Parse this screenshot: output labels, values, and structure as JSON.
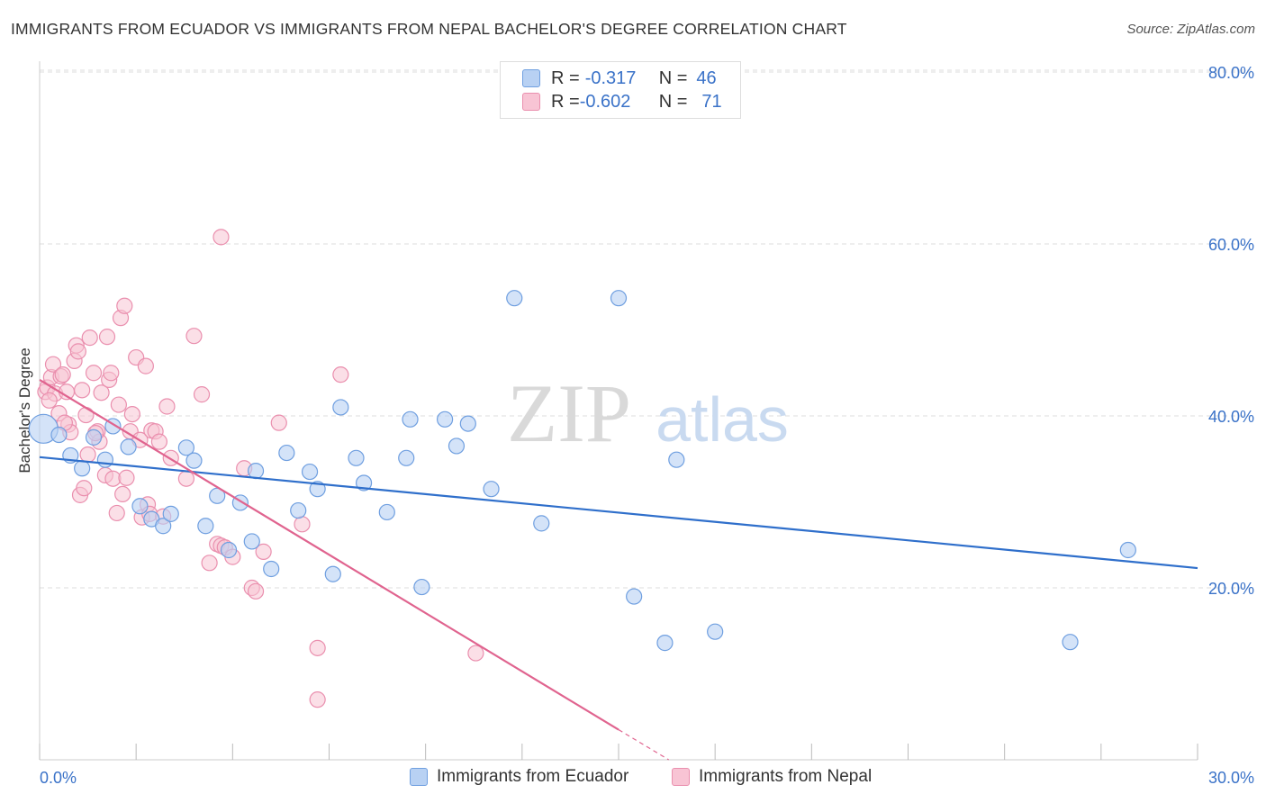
{
  "header": {
    "title": "IMMIGRANTS FROM ECUADOR VS IMMIGRANTS FROM NEPAL BACHELOR'S DEGREE CORRELATION CHART",
    "source": "Source: ZipAtlas.com"
  },
  "legend_top": {
    "rows": [
      {
        "r_label": "R = ",
        "r_value": "-0.317",
        "n_label": "N = ",
        "n_value": "46"
      },
      {
        "r_label": "R = ",
        "r_value": "-0.602",
        "n_label": "N = ",
        "n_value": "71"
      }
    ]
  },
  "watermark": {
    "zip": "ZIP",
    "atlas": "atlas"
  },
  "colors": {
    "ecuador_fill": "#b8d1f3",
    "ecuador_stroke": "#6f9fe0",
    "ecuador_line": "#2f6fcb",
    "nepal_fill": "#f8c4d4",
    "nepal_stroke": "#ea8fae",
    "nepal_line": "#e0648f",
    "grid": "#dcdcdc",
    "axis_text": "#3a72c8"
  },
  "chart_data": {
    "type": "scatter",
    "title": "IMMIGRANTS FROM ECUADOR VS IMMIGRANTS FROM NEPAL BACHELOR'S DEGREE CORRELATION CHART",
    "xlabel": "",
    "ylabel": "Bachelor's Degree",
    "xlim": [
      0,
      30
    ],
    "ylim": [
      0,
      80
    ],
    "x_tick_labels": [
      "0.0%",
      "30.0%"
    ],
    "y_ticks": [
      20,
      40,
      60,
      80
    ],
    "y_tick_labels": [
      "20.0%",
      "40.0%",
      "60.0%",
      "80.0%"
    ],
    "grid": true,
    "legend_position": "bottom",
    "series": [
      {
        "name": "Immigrants from Ecuador",
        "r": -0.317,
        "n": 46,
        "trend": {
          "x": [
            0,
            30
          ],
          "y": [
            35.2,
            22.3
          ]
        },
        "points": [
          [
            0.1,
            38.5
          ],
          [
            0.5,
            37.8
          ],
          [
            0.8,
            35.4
          ],
          [
            1.1,
            33.9
          ],
          [
            1.4,
            37.5
          ],
          [
            1.7,
            34.9
          ],
          [
            1.9,
            38.8
          ],
          [
            2.3,
            36.4
          ],
          [
            2.6,
            29.5
          ],
          [
            2.9,
            28.0
          ],
          [
            3.2,
            27.2
          ],
          [
            3.4,
            28.6
          ],
          [
            3.8,
            36.3
          ],
          [
            4.0,
            34.8
          ],
          [
            4.3,
            27.2
          ],
          [
            4.6,
            30.7
          ],
          [
            4.9,
            24.4
          ],
          [
            5.2,
            29.9
          ],
          [
            5.5,
            25.4
          ],
          [
            5.6,
            33.6
          ],
          [
            6.0,
            22.2
          ],
          [
            6.4,
            35.7
          ],
          [
            6.7,
            29.0
          ],
          [
            7.0,
            33.5
          ],
          [
            7.2,
            31.5
          ],
          [
            7.6,
            21.6
          ],
          [
            7.8,
            41.0
          ],
          [
            8.2,
            35.1
          ],
          [
            8.4,
            32.2
          ],
          [
            9.0,
            28.8
          ],
          [
            9.5,
            35.1
          ],
          [
            9.6,
            39.6
          ],
          [
            9.9,
            20.1
          ],
          [
            10.5,
            39.6
          ],
          [
            10.8,
            36.5
          ],
          [
            11.1,
            39.1
          ],
          [
            11.7,
            31.5
          ],
          [
            12.3,
            53.7
          ],
          [
            13.0,
            27.5
          ],
          [
            15.0,
            53.7
          ],
          [
            15.4,
            19.0
          ],
          [
            16.2,
            13.6
          ],
          [
            16.5,
            34.9
          ],
          [
            17.5,
            14.9
          ],
          [
            26.7,
            13.7
          ],
          [
            28.2,
            24.4
          ]
        ]
      },
      {
        "name": "Immigrants from Nepal",
        "r": -0.602,
        "n": 71,
        "trend": {
          "x": [
            0,
            15
          ],
          "y": [
            44.2,
            3.5
          ]
        },
        "trend_dashed": {
          "x": [
            15,
            16.3
          ],
          "y": [
            3.5,
            0
          ]
        },
        "points": [
          [
            0.15,
            42.8
          ],
          [
            0.2,
            43.3
          ],
          [
            0.3,
            44.5
          ],
          [
            0.35,
            46.0
          ],
          [
            0.4,
            42.6
          ],
          [
            0.5,
            40.3
          ],
          [
            0.55,
            44.6
          ],
          [
            0.6,
            44.8
          ],
          [
            0.7,
            42.8
          ],
          [
            0.75,
            39.0
          ],
          [
            0.8,
            38.1
          ],
          [
            0.9,
            46.4
          ],
          [
            0.95,
            48.2
          ],
          [
            1.0,
            47.5
          ],
          [
            1.05,
            30.8
          ],
          [
            1.1,
            43.0
          ],
          [
            1.15,
            31.6
          ],
          [
            1.2,
            40.1
          ],
          [
            1.25,
            35.5
          ],
          [
            1.3,
            49.1
          ],
          [
            1.4,
            45.0
          ],
          [
            1.5,
            38.2
          ],
          [
            1.55,
            37.0
          ],
          [
            1.6,
            42.7
          ],
          [
            1.7,
            33.1
          ],
          [
            1.75,
            49.2
          ],
          [
            1.8,
            44.2
          ],
          [
            1.85,
            45.0
          ],
          [
            1.9,
            32.7
          ],
          [
            2.0,
            28.7
          ],
          [
            2.05,
            41.3
          ],
          [
            2.1,
            51.4
          ],
          [
            2.2,
            52.8
          ],
          [
            2.25,
            32.8
          ],
          [
            2.35,
            38.2
          ],
          [
            2.4,
            40.2
          ],
          [
            2.5,
            46.8
          ],
          [
            2.6,
            37.2
          ],
          [
            2.65,
            28.2
          ],
          [
            2.75,
            45.8
          ],
          [
            2.8,
            29.7
          ],
          [
            2.85,
            28.6
          ],
          [
            2.9,
            38.3
          ],
          [
            3.0,
            38.2
          ],
          [
            3.1,
            37.0
          ],
          [
            3.2,
            28.3
          ],
          [
            3.3,
            41.1
          ],
          [
            3.4,
            35.1
          ],
          [
            3.8,
            32.7
          ],
          [
            4.0,
            49.3
          ],
          [
            4.2,
            42.5
          ],
          [
            4.4,
            22.9
          ],
          [
            4.6,
            25.1
          ],
          [
            4.7,
            24.9
          ],
          [
            4.7,
            60.8
          ],
          [
            4.8,
            24.7
          ],
          [
            5.0,
            23.6
          ],
          [
            5.3,
            33.9
          ],
          [
            5.5,
            20.0
          ],
          [
            5.6,
            19.6
          ],
          [
            5.8,
            24.2
          ],
          [
            6.2,
            39.2
          ],
          [
            6.8,
            27.4
          ],
          [
            7.2,
            13.0
          ],
          [
            7.2,
            7.0
          ],
          [
            7.8,
            44.8
          ],
          [
            11.3,
            12.4
          ],
          [
            0.25,
            41.8
          ],
          [
            1.45,
            38.0
          ],
          [
            0.65,
            39.2
          ],
          [
            2.15,
            30.9
          ]
        ]
      }
    ]
  },
  "bottom_legend": {
    "items": [
      {
        "label": "Immigrants from Ecuador"
      },
      {
        "label": "Immigrants from Nepal"
      }
    ]
  }
}
